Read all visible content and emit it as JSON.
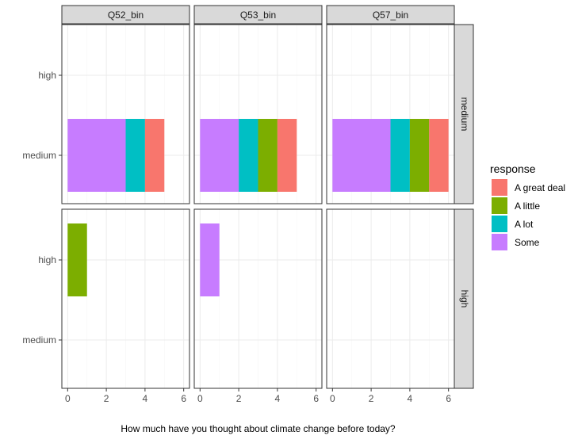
{
  "chart_data": {
    "type": "bar",
    "orientation": "horizontal",
    "stacked": true,
    "xlabel": "How much have you thought about climate change before today?",
    "ylabel": "",
    "xlim": [
      -0.3,
      6.3
    ],
    "x_ticks": [
      "0",
      "2",
      "4",
      "6"
    ],
    "y_categories": [
      "medium",
      "high"
    ],
    "grid": true,
    "legend": {
      "title": "response",
      "position": "right",
      "entries": [
        {
          "label": "A great deal",
          "color": "#F8766D"
        },
        {
          "label": "A little",
          "color": "#7CAE00"
        },
        {
          "label": "A lot",
          "color": "#00BFC4"
        },
        {
          "label": "Some",
          "color": "#C77CFF"
        }
      ]
    },
    "facet_columns": [
      "Q52_bin",
      "Q53_bin",
      "Q57_bin"
    ],
    "facet_rows": [
      "medium",
      "high"
    ],
    "stack_order": [
      "Some",
      "A lot",
      "A little",
      "A great deal"
    ],
    "panels": [
      {
        "row": "medium",
        "column": "Q52_bin",
        "bars": [
          {
            "y": "medium",
            "segments": {
              "Some": 3,
              "A lot": 1,
              "A little": 0,
              "A great deal": 1
            }
          }
        ]
      },
      {
        "row": "medium",
        "column": "Q53_bin",
        "bars": [
          {
            "y": "medium",
            "segments": {
              "Some": 2,
              "A lot": 1,
              "A little": 1,
              "A great deal": 1
            }
          }
        ]
      },
      {
        "row": "medium",
        "column": "Q57_bin",
        "bars": [
          {
            "y": "medium",
            "segments": {
              "Some": 3,
              "A lot": 1,
              "A little": 1,
              "A great deal": 1
            }
          }
        ]
      },
      {
        "row": "high",
        "column": "Q52_bin",
        "bars": [
          {
            "y": "high",
            "segments": {
              "Some": 0,
              "A lot": 0,
              "A little": 1,
              "A great deal": 0
            }
          }
        ]
      },
      {
        "row": "high",
        "column": "Q53_bin",
        "bars": [
          {
            "y": "high",
            "segments": {
              "Some": 1,
              "A lot": 0,
              "A little": 0,
              "A great deal": 0
            }
          }
        ]
      },
      {
        "row": "high",
        "column": "Q57_bin",
        "bars": []
      }
    ],
    "colors": {
      "strip_fill": "#D9D9D9",
      "panel_border": "#333333",
      "grid_major": "#EBEBEB",
      "grid_minor": "#F5F5F5",
      "axis_text": "#4D4D4D"
    }
  }
}
